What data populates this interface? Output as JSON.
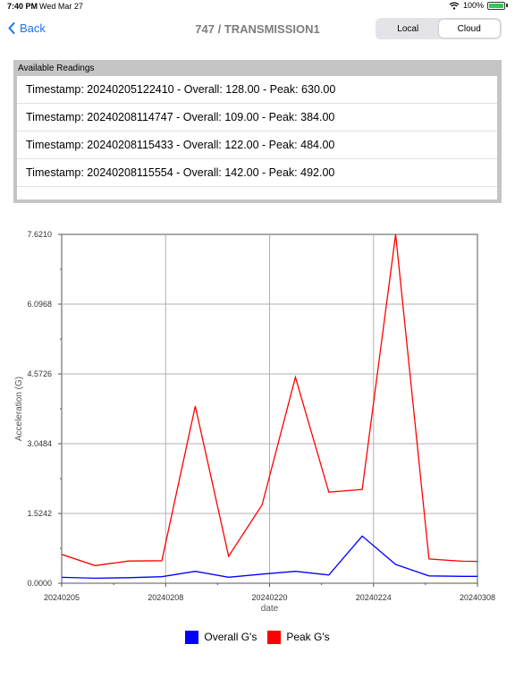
{
  "status_bar": {
    "time": "7:40 PM",
    "date": "Wed Mar 27",
    "battery_percent": "100%",
    "battery_level": 1.0,
    "icons": [
      "wifi-icon",
      "battery-charging-icon"
    ]
  },
  "nav": {
    "back_label": "Back",
    "back_icon": "chevron-left-icon",
    "title": "747 / TRANSMISSION1",
    "segments": [
      {
        "label": "Local",
        "selected": false
      },
      {
        "label": "Cloud",
        "selected": true
      }
    ]
  },
  "readings": {
    "header": "Available Readings",
    "items": [
      "Timestamp: 20240205122410 - Overall: 128.00 - Peak: 630.00",
      "Timestamp: 20240208114747 - Overall: 109.00 - Peak: 384.00",
      "Timestamp: 20240208115433 - Overall: 122.00 - Peak: 484.00",
      "Timestamp: 20240208115554 - Overall: 142.00 - Peak: 492.00"
    ]
  },
  "colors": {
    "accent": "#1a73e8",
    "overall": "#0000ff",
    "peak": "#ff0000",
    "grid": "#b0b0b0"
  },
  "chart_data": {
    "type": "line",
    "xlabel": "date",
    "ylabel": "Acceleration (G)",
    "x_tick_labels": [
      "20240205",
      "20240208",
      "20240220",
      "20240224",
      "20240308"
    ],
    "y_tick_labels": [
      "0.0000",
      "1.5242",
      "3.0484",
      "4.5726",
      "6.0968",
      "7.6210"
    ],
    "ylim": [
      0,
      7.621
    ],
    "x": [
      0,
      1,
      2,
      3,
      4,
      5,
      6,
      7,
      8,
      9,
      10,
      11,
      12,
      13
    ],
    "xlim": [
      0,
      12.45
    ],
    "grid": true,
    "legend_position": "bottom-center",
    "series": [
      {
        "name": "Overall G's",
        "color": "#0000ff",
        "values": [
          0.128,
          0.109,
          0.122,
          0.142,
          0.26,
          0.13,
          0.2,
          0.26,
          0.18,
          1.03,
          0.41,
          0.16,
          0.15,
          0.15
        ]
      },
      {
        "name": "Peak G's",
        "color": "#ff0000",
        "values": [
          0.63,
          0.384,
          0.484,
          0.492,
          3.87,
          0.59,
          1.71,
          4.5,
          1.99,
          2.05,
          7.621,
          0.53,
          0.48,
          0.47
        ]
      }
    ]
  }
}
